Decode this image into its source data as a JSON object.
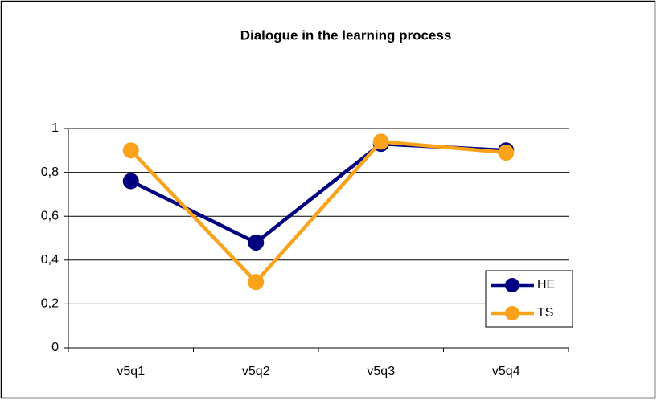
{
  "chart_data": {
    "type": "line",
    "title": "Dialogue in the learning process",
    "categories": [
      "v5q1",
      "v5q2",
      "v5q3",
      "v5q4"
    ],
    "series": [
      {
        "name": "HE",
        "color": "#000080",
        "values": [
          0.76,
          0.48,
          0.93,
          0.9
        ]
      },
      {
        "name": "TS",
        "color": "#f9a21a",
        "values": [
          0.9,
          0.3,
          0.94,
          0.89
        ]
      }
    ],
    "ylim": [
      0,
      1
    ],
    "yticks": [
      0,
      {
        "value": 0.2,
        "label": "0,2"
      },
      {
        "value": 0.4,
        "label": "0,4"
      },
      {
        "value": 0.6,
        "label": "0,6"
      },
      {
        "value": 0.8,
        "label": "0,8"
      },
      1
    ],
    "grid": true,
    "legend": "lower right"
  }
}
